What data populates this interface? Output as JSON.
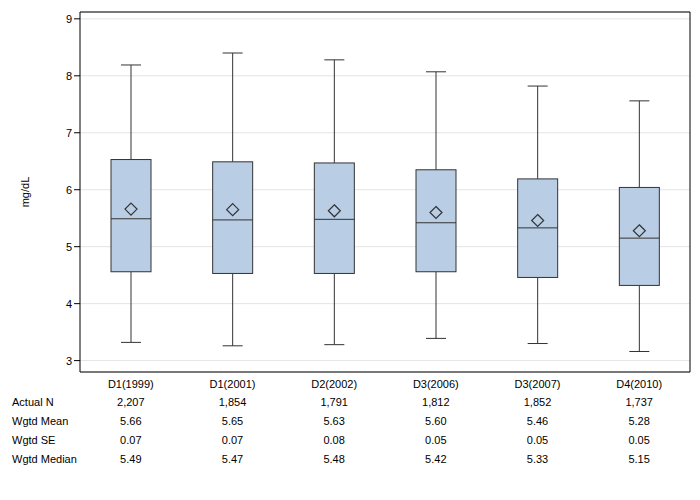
{
  "chart_data": {
    "type": "boxplot",
    "y_label": "mg/dL",
    "categories": [
      "D1(1999)",
      "D1(2001)",
      "D2(2002)",
      "D3(2006)",
      "D3(2007)",
      "D4(2010)"
    ],
    "whisker_low": [
      3.32,
      3.26,
      3.28,
      3.39,
      3.3,
      3.16
    ],
    "q1": [
      4.56,
      4.53,
      4.53,
      4.56,
      4.46,
      4.32
    ],
    "median": [
      5.49,
      5.47,
      5.48,
      5.42,
      5.33,
      5.15
    ],
    "q3": [
      6.53,
      6.49,
      6.47,
      6.35,
      6.19,
      6.04
    ],
    "whisker_high": [
      8.19,
      8.4,
      8.28,
      8.07,
      7.82,
      7.56
    ],
    "mean": [
      5.66,
      5.65,
      5.63,
      5.6,
      5.46,
      5.28
    ],
    "color": "#b9cde5",
    "marker": "diamond",
    "ylim": [
      2.8,
      9.12
    ],
    "yticks": [
      3,
      4,
      5,
      6,
      7,
      8,
      9
    ],
    "grid": true,
    "table": {
      "rows": [
        {
          "label": "Actual N",
          "values": [
            "2,207",
            "1,854",
            "1,791",
            "1,812",
            "1,852",
            "1,737"
          ]
        },
        {
          "label": "Wgtd Mean",
          "values": [
            "5.66",
            "5.65",
            "5.63",
            "5.60",
            "5.46",
            "5.28"
          ]
        },
        {
          "label": "Wgtd SE",
          "values": [
            "0.07",
            "0.07",
            "0.08",
            "0.05",
            "0.05",
            "0.05"
          ]
        },
        {
          "label": "Wgtd Median",
          "values": [
            "5.49",
            "5.47",
            "5.48",
            "5.42",
            "5.33",
            "5.15"
          ]
        }
      ]
    }
  }
}
